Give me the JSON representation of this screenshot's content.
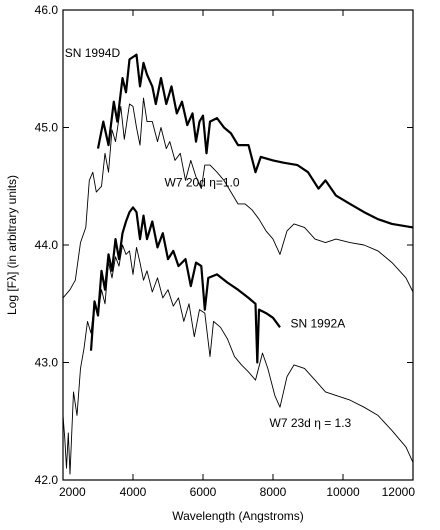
{
  "chart_data": {
    "type": "line",
    "xlabel": "Wavelength (Angstroms)",
    "ylabel": "Log [Fλ] (in arbitrary units)",
    "xlim": [
      2000,
      12000
    ],
    "ylim": [
      42.0,
      46.0
    ],
    "x_ticks": [
      2000,
      4000,
      6000,
      8000,
      10000,
      12000
    ],
    "y_ticks": [
      42.0,
      43.0,
      44.0,
      45.0,
      46.0
    ],
    "x_tick_labels": [
      "2000",
      "4000",
      "6000",
      "8000",
      "10000",
      "12000"
    ],
    "y_tick_labels": [
      "42.0",
      "43.0",
      "44.0",
      "45.0",
      "46.0"
    ],
    "grid": false,
    "legend": "none",
    "annotations": [
      {
        "id": "sn1994d",
        "text": "SN 1994D",
        "x": 2050,
        "y": 45.6
      },
      {
        "id": "w7-20d",
        "text": "W7 20d η=1.0",
        "x": 4900,
        "y": 44.5
      },
      {
        "id": "sn1992a",
        "text": "SN 1992A",
        "x": 8500,
        "y": 43.3
      },
      {
        "id": "w7-23d",
        "text": "W7 23d  η = 1.3",
        "x": 7900,
        "y": 42.45
      }
    ],
    "series": [
      {
        "style": "thick",
        "points": [
          [
            3000,
            44.82
          ],
          [
            3150,
            45.05
          ],
          [
            3300,
            44.85
          ],
          [
            3450,
            45.22
          ],
          [
            3550,
            45.05
          ],
          [
            3700,
            45.42
          ],
          [
            3800,
            45.3
          ],
          [
            3900,
            45.58
          ],
          [
            4000,
            45.6
          ],
          [
            4100,
            45.62
          ],
          [
            4200,
            45.35
          ],
          [
            4300,
            45.55
          ],
          [
            4400,
            45.45
          ],
          [
            4550,
            45.35
          ],
          [
            4650,
            45.2
          ],
          [
            4800,
            45.42
          ],
          [
            4950,
            45.2
          ],
          [
            5100,
            45.35
          ],
          [
            5250,
            45.12
          ],
          [
            5400,
            45.22
          ],
          [
            5550,
            45.02
          ],
          [
            5700,
            45.12
          ],
          [
            5800,
            44.88
          ],
          [
            5900,
            45.05
          ],
          [
            6000,
            45.1
          ],
          [
            6100,
            44.78
          ],
          [
            6200,
            45.05
          ],
          [
            6400,
            45.08
          ],
          [
            6600,
            45.0
          ],
          [
            6800,
            44.95
          ],
          [
            7000,
            44.85
          ],
          [
            7300,
            44.85
          ],
          [
            7500,
            44.62
          ],
          [
            7650,
            44.75
          ],
          [
            8000,
            44.72
          ],
          [
            8300,
            44.7
          ],
          [
            8700,
            44.68
          ],
          [
            9000,
            44.62
          ],
          [
            9300,
            44.48
          ],
          [
            9500,
            44.55
          ],
          [
            9800,
            44.42
          ],
          [
            10200,
            44.35
          ],
          [
            10600,
            44.28
          ],
          [
            11000,
            44.22
          ],
          [
            11400,
            44.18
          ],
          [
            12000,
            44.15
          ]
        ]
      },
      {
        "style": "thin",
        "points": [
          [
            2000,
            43.55
          ],
          [
            2200,
            43.62
          ],
          [
            2350,
            43.7
          ],
          [
            2500,
            44.02
          ],
          [
            2650,
            44.15
          ],
          [
            2750,
            44.55
          ],
          [
            2850,
            44.62
          ],
          [
            2950,
            44.45
          ],
          [
            3100,
            44.5
          ],
          [
            3200,
            44.78
          ],
          [
            3300,
            44.62
          ],
          [
            3400,
            44.98
          ],
          [
            3500,
            44.88
          ],
          [
            3650,
            45.18
          ],
          [
            3750,
            44.9
          ],
          [
            3900,
            45.2
          ],
          [
            4000,
            45.18
          ],
          [
            4100,
            45.0
          ],
          [
            4200,
            44.85
          ],
          [
            4300,
            45.25
          ],
          [
            4400,
            45.05
          ],
          [
            4550,
            45.05
          ],
          [
            4700,
            44.88
          ],
          [
            4800,
            45.0
          ],
          [
            4950,
            44.82
          ],
          [
            5050,
            44.88
          ],
          [
            5200,
            44.72
          ],
          [
            5350,
            44.78
          ],
          [
            5500,
            44.55
          ],
          [
            5650,
            44.72
          ],
          [
            5800,
            44.58
          ],
          [
            5950,
            44.48
          ],
          [
            6050,
            44.68
          ],
          [
            6200,
            44.68
          ],
          [
            6400,
            44.62
          ],
          [
            6600,
            44.55
          ],
          [
            6800,
            44.45
          ],
          [
            7000,
            44.35
          ],
          [
            7200,
            44.35
          ],
          [
            7400,
            44.3
          ],
          [
            7600,
            44.22
          ],
          [
            7800,
            44.12
          ],
          [
            8000,
            44.05
          ],
          [
            8200,
            43.92
          ],
          [
            8400,
            44.12
          ],
          [
            8600,
            44.18
          ],
          [
            8900,
            44.15
          ],
          [
            9200,
            44.05
          ],
          [
            9500,
            44.02
          ],
          [
            9800,
            44.05
          ],
          [
            10200,
            44.02
          ],
          [
            10600,
            44.0
          ],
          [
            11000,
            43.95
          ],
          [
            11400,
            43.85
          ],
          [
            11800,
            43.72
          ],
          [
            12000,
            43.6
          ]
        ]
      },
      {
        "style": "thick",
        "points": [
          [
            2800,
            43.1
          ],
          [
            2900,
            43.52
          ],
          [
            3000,
            43.4
          ],
          [
            3100,
            43.78
          ],
          [
            3200,
            43.62
          ],
          [
            3300,
            43.92
          ],
          [
            3400,
            43.78
          ],
          [
            3500,
            44.05
          ],
          [
            3600,
            43.88
          ],
          [
            3700,
            44.1
          ],
          [
            3800,
            44.2
          ],
          [
            3900,
            44.28
          ],
          [
            4000,
            44.32
          ],
          [
            4100,
            44.28
          ],
          [
            4200,
            44.05
          ],
          [
            4300,
            44.25
          ],
          [
            4400,
            44.05
          ],
          [
            4550,
            44.2
          ],
          [
            4700,
            43.98
          ],
          [
            4850,
            44.1
          ],
          [
            5000,
            43.88
          ],
          [
            5150,
            43.95
          ],
          [
            5300,
            43.82
          ],
          [
            5500,
            43.88
          ],
          [
            5650,
            43.65
          ],
          [
            5800,
            43.85
          ],
          [
            5950,
            43.82
          ],
          [
            6050,
            43.45
          ],
          [
            6150,
            43.72
          ],
          [
            6400,
            43.75
          ],
          [
            6700,
            43.68
          ],
          [
            7000,
            43.62
          ],
          [
            7300,
            43.55
          ],
          [
            7500,
            43.5
          ],
          [
            7550,
            43.0
          ],
          [
            7600,
            43.45
          ],
          [
            7800,
            43.42
          ],
          [
            8000,
            43.38
          ],
          [
            8200,
            43.3
          ]
        ]
      },
      {
        "style": "thin",
        "points": [
          [
            2000,
            42.55
          ],
          [
            2050,
            42.35
          ],
          [
            2100,
            42.1
          ],
          [
            2150,
            42.4
          ],
          [
            2200,
            42.05
          ],
          [
            2300,
            42.75
          ],
          [
            2400,
            42.55
          ],
          [
            2500,
            42.95
          ],
          [
            2600,
            43.12
          ],
          [
            2700,
            43.35
          ],
          [
            2800,
            43.25
          ],
          [
            2900,
            43.52
          ],
          [
            3000,
            43.4
          ],
          [
            3100,
            43.62
          ],
          [
            3200,
            43.5
          ],
          [
            3300,
            43.85
          ],
          [
            3400,
            43.72
          ],
          [
            3500,
            43.9
          ],
          [
            3600,
            43.82
          ],
          [
            3700,
            44.0
          ],
          [
            3800,
            43.92
          ],
          [
            3900,
            43.95
          ],
          [
            4000,
            43.75
          ],
          [
            4100,
            43.98
          ],
          [
            4200,
            43.85
          ],
          [
            4300,
            43.7
          ],
          [
            4400,
            43.78
          ],
          [
            4550,
            43.6
          ],
          [
            4700,
            43.72
          ],
          [
            4850,
            43.55
          ],
          [
            5000,
            43.62
          ],
          [
            5150,
            43.48
          ],
          [
            5300,
            43.55
          ],
          [
            5450,
            43.35
          ],
          [
            5600,
            43.5
          ],
          [
            5750,
            43.22
          ],
          [
            5900,
            43.45
          ],
          [
            6050,
            43.42
          ],
          [
            6200,
            43.05
          ],
          [
            6300,
            43.35
          ],
          [
            6500,
            43.3
          ],
          [
            6700,
            43.2
          ],
          [
            6900,
            43.05
          ],
          [
            7100,
            42.98
          ],
          [
            7300,
            42.92
          ],
          [
            7500,
            42.85
          ],
          [
            7700,
            43.08
          ],
          [
            7850,
            42.95
          ],
          [
            8050,
            42.72
          ],
          [
            8200,
            42.62
          ],
          [
            8400,
            42.88
          ],
          [
            8600,
            42.98
          ],
          [
            8900,
            42.95
          ],
          [
            9200,
            42.85
          ],
          [
            9500,
            42.75
          ],
          [
            9800,
            42.72
          ],
          [
            10200,
            42.68
          ],
          [
            10600,
            42.62
          ],
          [
            11000,
            42.55
          ],
          [
            11400,
            42.42
          ],
          [
            11800,
            42.28
          ],
          [
            12000,
            42.15
          ]
        ]
      }
    ]
  }
}
